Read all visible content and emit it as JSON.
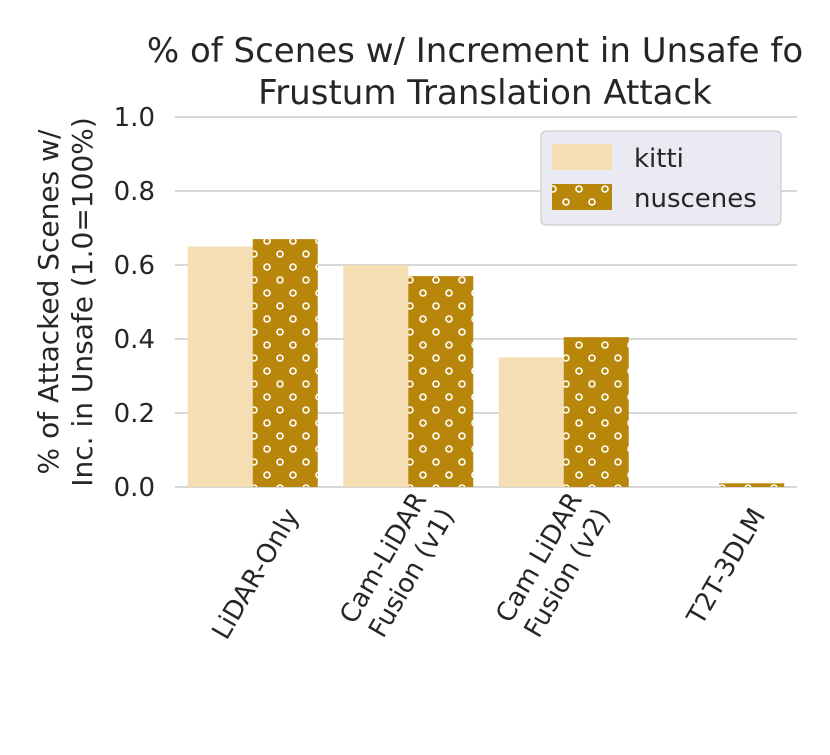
{
  "chart_data": {
    "type": "bar",
    "title_lines": [
      "% of Scenes w/ Increment in Unsafe fo",
      "Frustum Translation Attack"
    ],
    "ylabel_lines": [
      "% of Attacked Scenes w/",
      "Inc. in Unsafe (1.0=100%)"
    ],
    "xlabel": "",
    "categories": [
      [
        "LiDAR-Only"
      ],
      [
        "Cam-LiDAR",
        "Fusion (v1)"
      ],
      [
        "Cam LiDAR",
        "Fusion (v2)"
      ],
      [
        "T2T-3DLM"
      ]
    ],
    "series": [
      {
        "name": "kitti",
        "color": "#f5deb3",
        "pattern": "solid",
        "values": [
          0.65,
          0.6,
          0.35,
          0.0
        ]
      },
      {
        "name": "nuscenes",
        "color": "#b8860b",
        "pattern": "dots",
        "values": [
          0.67,
          0.57,
          0.405,
          0.01
        ]
      }
    ],
    "ylim": [
      0,
      1.0
    ],
    "yticks": [
      "0.0",
      "0.2",
      "0.4",
      "0.6",
      "0.8",
      "1.0"
    ],
    "grid": true,
    "legend_position": "top-right"
  }
}
